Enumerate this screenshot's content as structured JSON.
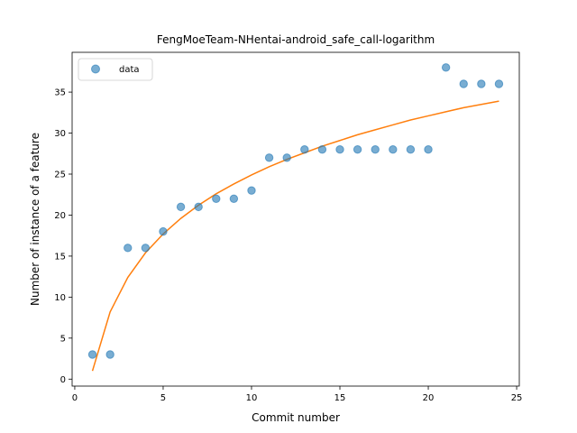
{
  "chart_data": {
    "type": "scatter",
    "title": "FengMoeTeam-NHentai-android_safe_call-logarithm",
    "xlabel": "Commit number",
    "ylabel": "Number of instance of a feature",
    "xlim": [
      -0.15,
      25.15
    ],
    "ylim": [
      -0.85,
      39.85
    ],
    "xticks": [
      0,
      5,
      10,
      15,
      20,
      25
    ],
    "yticks": [
      0,
      5,
      10,
      15,
      20,
      25,
      30,
      35
    ],
    "legend": {
      "position": "upper-left",
      "entries": [
        "data"
      ]
    },
    "grid": false,
    "series": [
      {
        "name": "data",
        "kind": "scatter",
        "color": "#1f77b4",
        "x": [
          1,
          2,
          3,
          4,
          5,
          6,
          7,
          8,
          9,
          10,
          11,
          12,
          13,
          14,
          15,
          16,
          17,
          18,
          19,
          20,
          21,
          22,
          23,
          24
        ],
        "y": [
          3,
          3,
          16,
          16,
          18,
          21,
          21,
          22,
          22,
          23,
          27,
          27,
          28,
          28,
          28,
          28,
          28,
          28,
          28,
          28,
          38,
          36,
          36,
          36
        ]
      },
      {
        "kind": "line",
        "color": "#ff7f0e",
        "x": [
          1,
          2,
          3,
          4,
          5,
          6,
          7,
          8,
          9,
          10,
          11,
          12,
          13,
          14,
          15,
          16,
          17,
          18,
          19,
          20,
          21,
          22,
          23,
          24
        ],
        "y": [
          1.0,
          8.2,
          12.4,
          15.4,
          17.7,
          19.6,
          21.2,
          22.6,
          23.8,
          24.9,
          25.9,
          26.8,
          27.6,
          28.4,
          29.1,
          29.8,
          30.4,
          31.0,
          31.6,
          32.1,
          32.6,
          33.1,
          33.5,
          33.9
        ]
      }
    ]
  }
}
